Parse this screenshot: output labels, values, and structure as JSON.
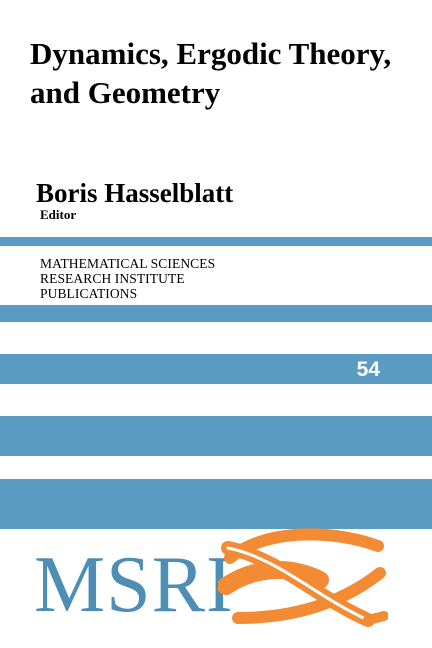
{
  "book": {
    "title_lines": [
      "Dynamics, Ergodic Theory,",
      "and Geometry"
    ],
    "editor_name": "Boris Hasselblatt",
    "editor_role": "Editor"
  },
  "series": {
    "lines": [
      "MATHEMATICAL SCIENCES",
      "RESEARCH INSTITUTE",
      "PUBLICATIONS"
    ],
    "volume": "54"
  },
  "publisher": {
    "logo_text": "MSRI",
    "logo_icon": "msri-swoosh-logo"
  },
  "colors": {
    "stripe": "#5b9bc2",
    "logo_text": "#4f8eb4",
    "logo_orange": "#f28b34",
    "background": "#ffffff"
  }
}
